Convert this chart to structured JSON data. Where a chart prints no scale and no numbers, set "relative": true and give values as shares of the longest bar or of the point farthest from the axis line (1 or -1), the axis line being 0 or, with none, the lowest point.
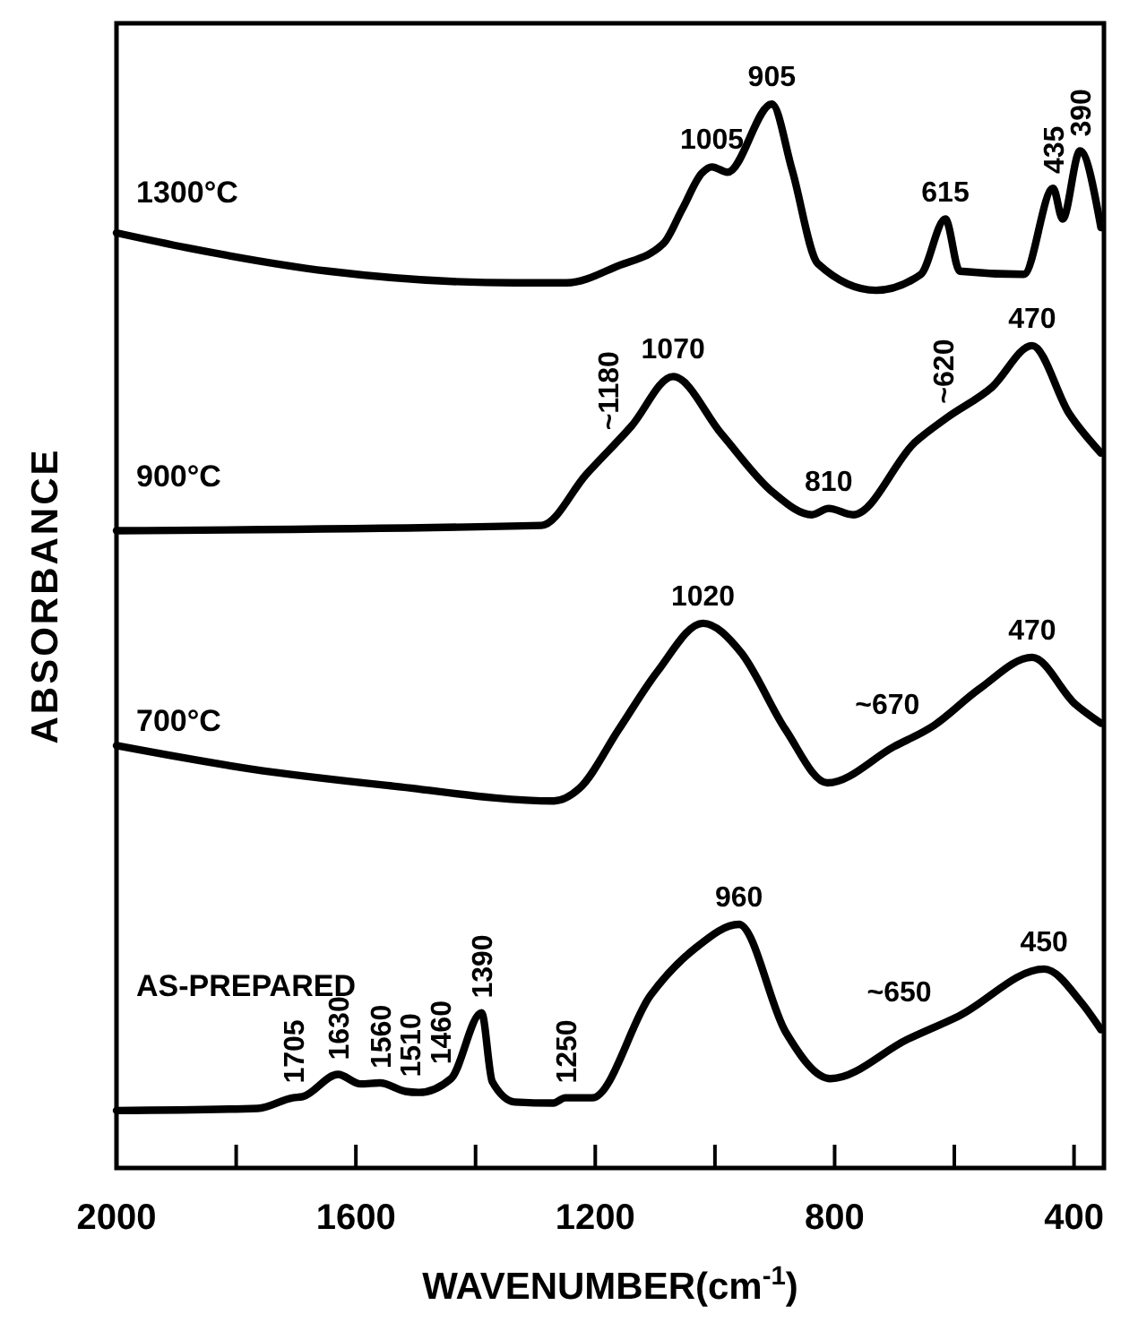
{
  "chart_data": {
    "type": "line",
    "relative": true,
    "xlabel": "WAVENUMBER(cm$^{-1}$)",
    "ylabel": "ABSORBANCE",
    "xlim": [
      2000,
      350
    ],
    "xticks": [
      2000,
      {
        "value": 1800,
        "label": null
      },
      1600,
      {
        "value": 1400,
        "label": null
      },
      1200,
      {
        "value": 1000,
        "label": null
      },
      800,
      {
        "value": 600,
        "label": null
      },
      400
    ],
    "tick_labels": "x",
    "grid": false,
    "marker": "none",
    "line_style": "solid",
    "series": [
      {
        "name": "1300°C",
        "color": "#000000",
        "x": [
          2000,
          1882,
          1646,
          1334,
          1248,
          1162,
          1086,
          1054,
          1022,
          1005,
          979,
          905,
          871,
          828,
          731,
          656,
          615,
          591,
          484,
          435,
          419,
          390,
          355
        ],
        "values": [
          0.879,
          0.865,
          0.843,
          0.832,
          0.832,
          0.848,
          0.869,
          0.902,
          0.935,
          0.941,
          0.936,
          1.0,
          0.938,
          0.85,
          0.825,
          0.84,
          0.892,
          0.843,
          0.84,
          0.921,
          0.892,
          0.956,
          0.884
        ]
      },
      {
        "name": "900°C",
        "color": "#000000",
        "x": [
          2000,
          1290,
          1215,
          1140,
          1070,
          989,
          903,
          838,
          810,
          769,
          666,
          613,
          537,
          470,
          408,
          355
        ],
        "values": [
          0.599,
          0.604,
          0.652,
          0.697,
          0.744,
          0.69,
          0.635,
          0.614,
          0.62,
          0.614,
          0.682,
          0.705,
          0.734,
          0.773,
          0.709,
          0.672
        ]
      },
      {
        "name": "700°C",
        "color": "#000000",
        "x": [
          2000,
          1775,
          1538,
          1269,
          1226,
          1161,
          1097,
          1020,
          957,
          882,
          812,
          701,
          634,
          559,
          470,
          398,
          355
        ],
        "values": [
          0.397,
          0.375,
          0.359,
          0.345,
          0.357,
          0.412,
          0.466,
          0.512,
          0.485,
          0.412,
          0.362,
          0.396,
          0.416,
          0.45,
          0.48,
          0.436,
          0.418
        ]
      },
      {
        "name": "AS-PREPARED",
        "color": "#000000",
        "x": [
          2000,
          1764,
          1705,
          1689,
          1630,
          1592,
          1560,
          1517,
          1495,
          1441,
          1390,
          1372,
          1334,
          1270,
          1250,
          1205,
          1108,
          1032,
          960,
          882,
          807,
          678,
          592,
          450,
          387,
          355
        ],
        "values": [
          0.054,
          0.056,
          0.066,
          0.067,
          0.088,
          0.079,
          0.08,
          0.072,
          0.071,
          0.084,
          0.146,
          0.081,
          0.062,
          0.061,
          0.066,
          0.066,
          0.162,
          0.207,
          0.229,
          0.128,
          0.084,
          0.121,
          0.143,
          0.187,
          0.155,
          0.13
        ]
      }
    ],
    "annotations": [
      {
        "text": "1005",
        "x": 1005,
        "y": 0.941
      },
      {
        "text": "905",
        "x": 905,
        "y": 1.0
      },
      {
        "text": "615",
        "x": 615,
        "y": 0.892
      },
      {
        "text": "435",
        "x": 435,
        "y": 0.921
      },
      {
        "text": "390",
        "x": 390,
        "y": 0.956
      },
      {
        "text": "~1180",
        "x": 1180,
        "y": 0.68
      },
      {
        "text": "1070",
        "x": 1070,
        "y": 0.744
      },
      {
        "text": "810",
        "x": 810,
        "y": 0.62
      },
      {
        "text": "~620",
        "x": 620,
        "y": 0.705
      },
      {
        "text": "470",
        "x": 470,
        "y": 0.773
      },
      {
        "text": "1020",
        "x": 1020,
        "y": 0.512
      },
      {
        "text": "~670",
        "x": 670,
        "y": 0.41
      },
      {
        "text": "470",
        "x": 470,
        "y": 0.48
      },
      {
        "text": "1705",
        "x": 1705,
        "y": 0.066
      },
      {
        "text": "1630",
        "x": 1630,
        "y": 0.088
      },
      {
        "text": "1560",
        "x": 1560,
        "y": 0.08
      },
      {
        "text": "1510",
        "x": 1510,
        "y": 0.072
      },
      {
        "text": "1460",
        "x": 1460,
        "y": 0.084
      },
      {
        "text": "1390",
        "x": 1390,
        "y": 0.146
      },
      {
        "text": "1250",
        "x": 1250,
        "y": 0.066
      },
      {
        "text": "960",
        "x": 960,
        "y": 0.229
      },
      {
        "text": "~650",
        "x": 650,
        "y": 0.14
      },
      {
        "text": "450",
        "x": 450,
        "y": 0.187
      }
    ]
  }
}
